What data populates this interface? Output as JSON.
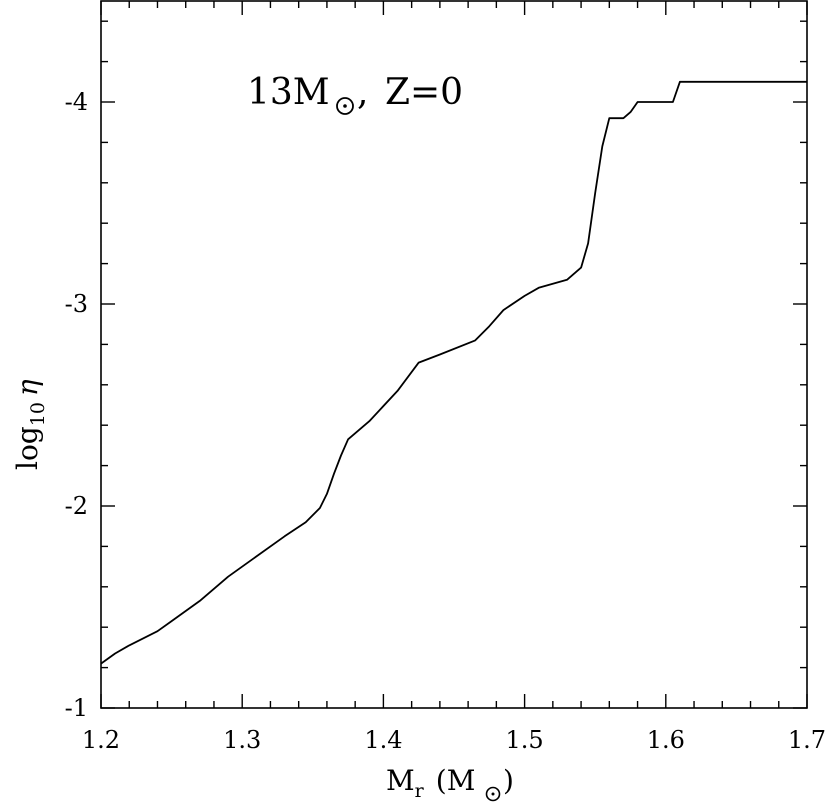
{
  "chart_data": {
    "type": "line",
    "annotation": {
      "mass": "13M",
      "metallicity": "Z=0"
    },
    "xlabel": {
      "main": "M",
      "sub": "r",
      "unit": "(M",
      "unit_close": ")"
    },
    "ylabel": {
      "main": "log",
      "sub": "10",
      "symbol": "η"
    },
    "xlim": [
      1.2,
      1.7
    ],
    "ylim": [
      -1.0,
      -4.5
    ],
    "x_ticks": [
      "1.2",
      "1.3",
      "1.4",
      "1.5",
      "1.6",
      "1.7"
    ],
    "y_ticks": [
      "-1",
      "-2",
      "-3",
      "-4"
    ],
    "grid": false,
    "series": [
      {
        "x": [
          1.2,
          1.21,
          1.22,
          1.24,
          1.25,
          1.27,
          1.29,
          1.31,
          1.33,
          1.345,
          1.355,
          1.36,
          1.365,
          1.37,
          1.375,
          1.39,
          1.41,
          1.425,
          1.44,
          1.465,
          1.475,
          1.485,
          1.5,
          1.51,
          1.53,
          1.54,
          1.545,
          1.55,
          1.555,
          1.56,
          1.565,
          1.57,
          1.575,
          1.58,
          1.6,
          1.605,
          1.61,
          1.62,
          1.65,
          1.7
        ],
        "y": [
          -1.22,
          -1.27,
          -1.31,
          -1.38,
          -1.43,
          -1.53,
          -1.65,
          -1.75,
          -1.85,
          -1.92,
          -1.99,
          -2.06,
          -2.16,
          -2.25,
          -2.33,
          -2.42,
          -2.57,
          -2.71,
          -2.75,
          -2.82,
          -2.89,
          -2.97,
          -3.04,
          -3.08,
          -3.12,
          -3.18,
          -3.3,
          -3.55,
          -3.78,
          -3.92,
          -3.92,
          -3.92,
          -3.95,
          -4.0,
          -4.0,
          -4.0,
          -4.1,
          -4.1,
          -4.1,
          -4.1
        ]
      }
    ]
  }
}
